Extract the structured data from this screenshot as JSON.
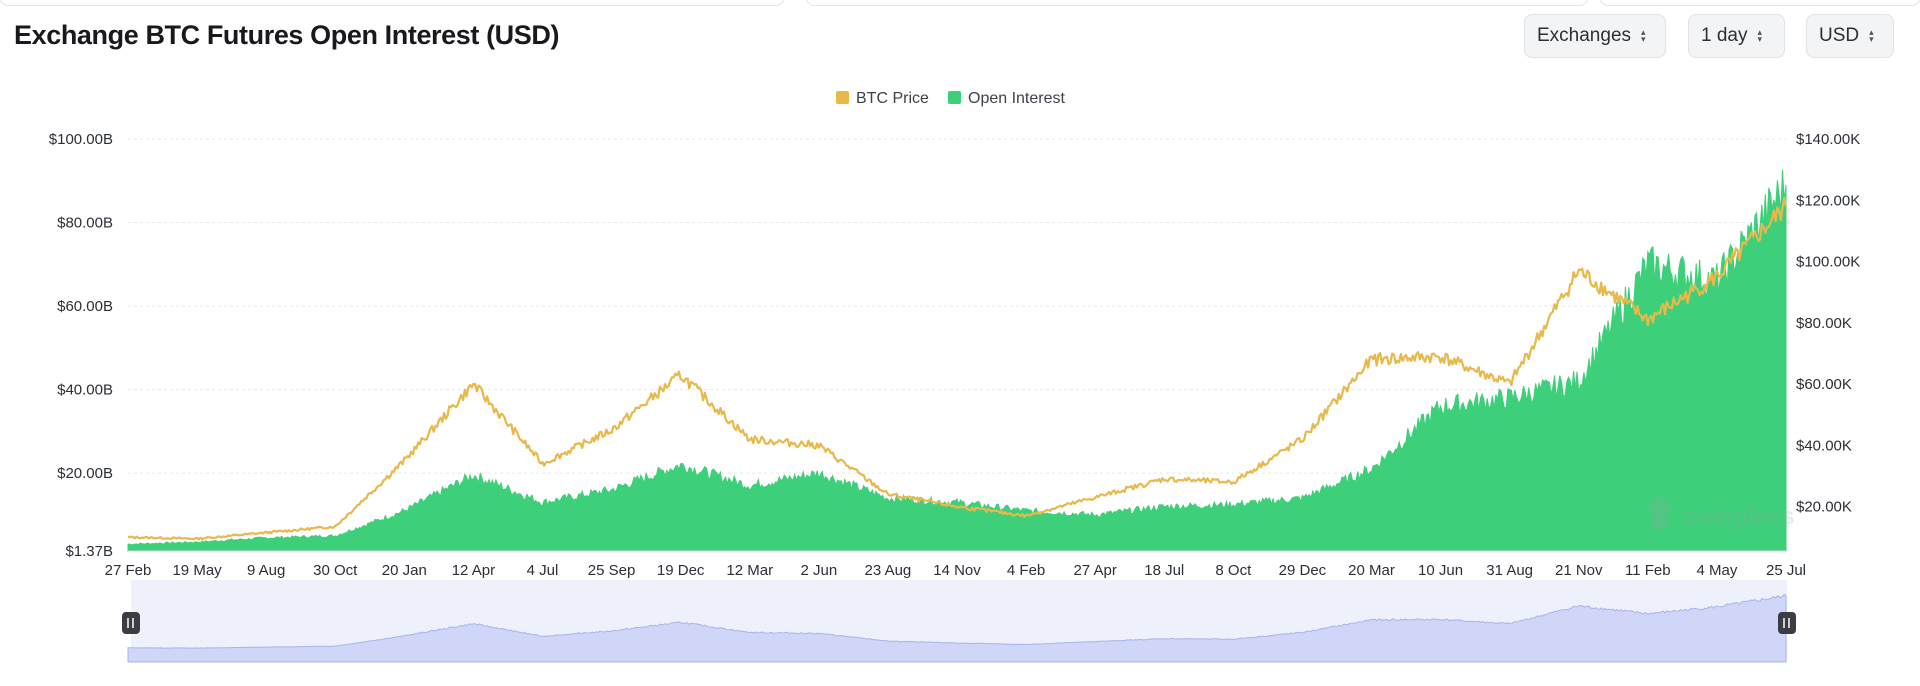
{
  "title": "Exchange BTC Futures Open Interest (USD)",
  "controls": [
    {
      "name": "exchanges-select",
      "label": "Exchanges"
    },
    {
      "name": "interval-select",
      "label": "1 day"
    },
    {
      "name": "currency-select",
      "label": "USD"
    }
  ],
  "watermark": "coinglass",
  "colors": {
    "price": "#e8b84a",
    "oi": "#3ecf7a",
    "navigator": "#cfd6f7",
    "grid": "#e8e8e8"
  },
  "chart_data": {
    "type": "area",
    "legend": [
      "BTC Price",
      "Open Interest"
    ],
    "legend_position": "top-center",
    "x_tick_labels": [
      "27 Feb",
      "19 May",
      "9 Aug",
      "30 Oct",
      "20 Jan",
      "12 Apr",
      "4 Jul",
      "25 Sep",
      "19 Dec",
      "12 Mar",
      "2 Jun",
      "23 Aug",
      "14 Nov",
      "4 Feb",
      "27 Apr",
      "18 Jul",
      "8 Oct",
      "29 Dec",
      "20 Mar",
      "10 Jun",
      "31 Aug",
      "21 Nov",
      "11 Feb",
      "4 May",
      "25 Jul"
    ],
    "y_left": {
      "tick_labels": [
        "$1.37B",
        "$20.00B",
        "$40.00B",
        "$60.00B",
        "$80.00B",
        "$100.00B"
      ],
      "ticks": [
        1.37,
        20,
        40,
        60,
        80,
        100
      ],
      "range": [
        1.37,
        100
      ]
    },
    "y_right": {
      "tick_labels": [
        "$20.00K",
        "$40.00K",
        "$60.00K",
        "$80.00K",
        "$100.00K",
        "$120.00K",
        "$140.00K"
      ],
      "ticks": [
        20000,
        40000,
        60000,
        80000,
        100000,
        120000,
        140000
      ],
      "range": [
        5500,
        140000
      ]
    },
    "grid": true,
    "series": [
      {
        "name": "Open Interest",
        "axis": "left",
        "unit": "USD billions",
        "points": [
          [
            0,
            3
          ],
          [
            1,
            3.5
          ],
          [
            2,
            4.5
          ],
          [
            3,
            5
          ],
          [
            4,
            11
          ],
          [
            5,
            19.5
          ],
          [
            6,
            13
          ],
          [
            7,
            16
          ],
          [
            8,
            22
          ],
          [
            9,
            17
          ],
          [
            10,
            20
          ],
          [
            11,
            14
          ],
          [
            12,
            13
          ],
          [
            13,
            11
          ],
          [
            14,
            10
          ],
          [
            15,
            12
          ],
          [
            16,
            12.5
          ],
          [
            17,
            14
          ],
          [
            18,
            21
          ],
          [
            19,
            36
          ],
          [
            20,
            38
          ],
          [
            21,
            42
          ],
          [
            22,
            70
          ],
          [
            23,
            66
          ],
          [
            24,
            89
          ]
        ]
      },
      {
        "name": "BTC Price",
        "axis": "right",
        "unit": "USD",
        "points": [
          [
            0,
            10000
          ],
          [
            1,
            9500
          ],
          [
            2,
            11500
          ],
          [
            3,
            13500
          ],
          [
            4,
            35000
          ],
          [
            5,
            60000
          ],
          [
            6,
            34000
          ],
          [
            7,
            45000
          ],
          [
            8,
            63000
          ],
          [
            9,
            42000
          ],
          [
            10,
            40000
          ],
          [
            11,
            24000
          ],
          [
            12,
            20000
          ],
          [
            13,
            17000
          ],
          [
            14,
            23000
          ],
          [
            15,
            29000
          ],
          [
            16,
            28000
          ],
          [
            17,
            42000
          ],
          [
            18,
            68000
          ],
          [
            19,
            69000
          ],
          [
            20,
            60000
          ],
          [
            21,
            97000
          ],
          [
            22,
            81000
          ],
          [
            23,
            95000
          ],
          [
            24,
            118000
          ]
        ]
      }
    ]
  }
}
